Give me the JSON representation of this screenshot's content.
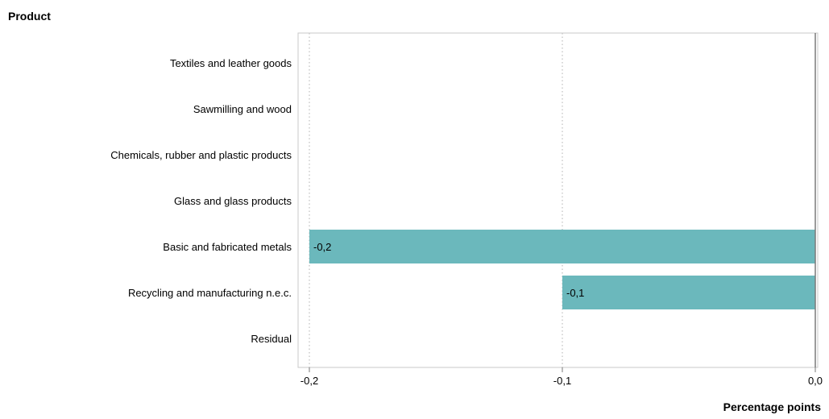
{
  "chart_data": {
    "type": "bar",
    "orientation": "horizontal",
    "ylabel": "Product",
    "xlabel": "Percentage points",
    "categories": [
      "Textiles and leather goods",
      "Sawmilling and wood",
      "Chemicals, rubber and plastic products",
      "Glass and glass products",
      "Basic and fabricated metals",
      "Recycling and manufacturing n.e.c.",
      "Residual"
    ],
    "values": [
      null,
      null,
      null,
      null,
      -0.2,
      -0.1,
      null
    ],
    "data_labels": [
      "",
      "",
      "",
      "",
      "-0,2",
      "-0,1",
      ""
    ],
    "xlim": [
      -0.2,
      0.0
    ],
    "xticks": [
      -0.2,
      -0.1,
      0.0
    ],
    "xtick_labels": [
      "-0,2",
      "-0,1",
      "0,0"
    ],
    "grid": "vertical dotted",
    "bar_color": "#6bb8bc"
  }
}
